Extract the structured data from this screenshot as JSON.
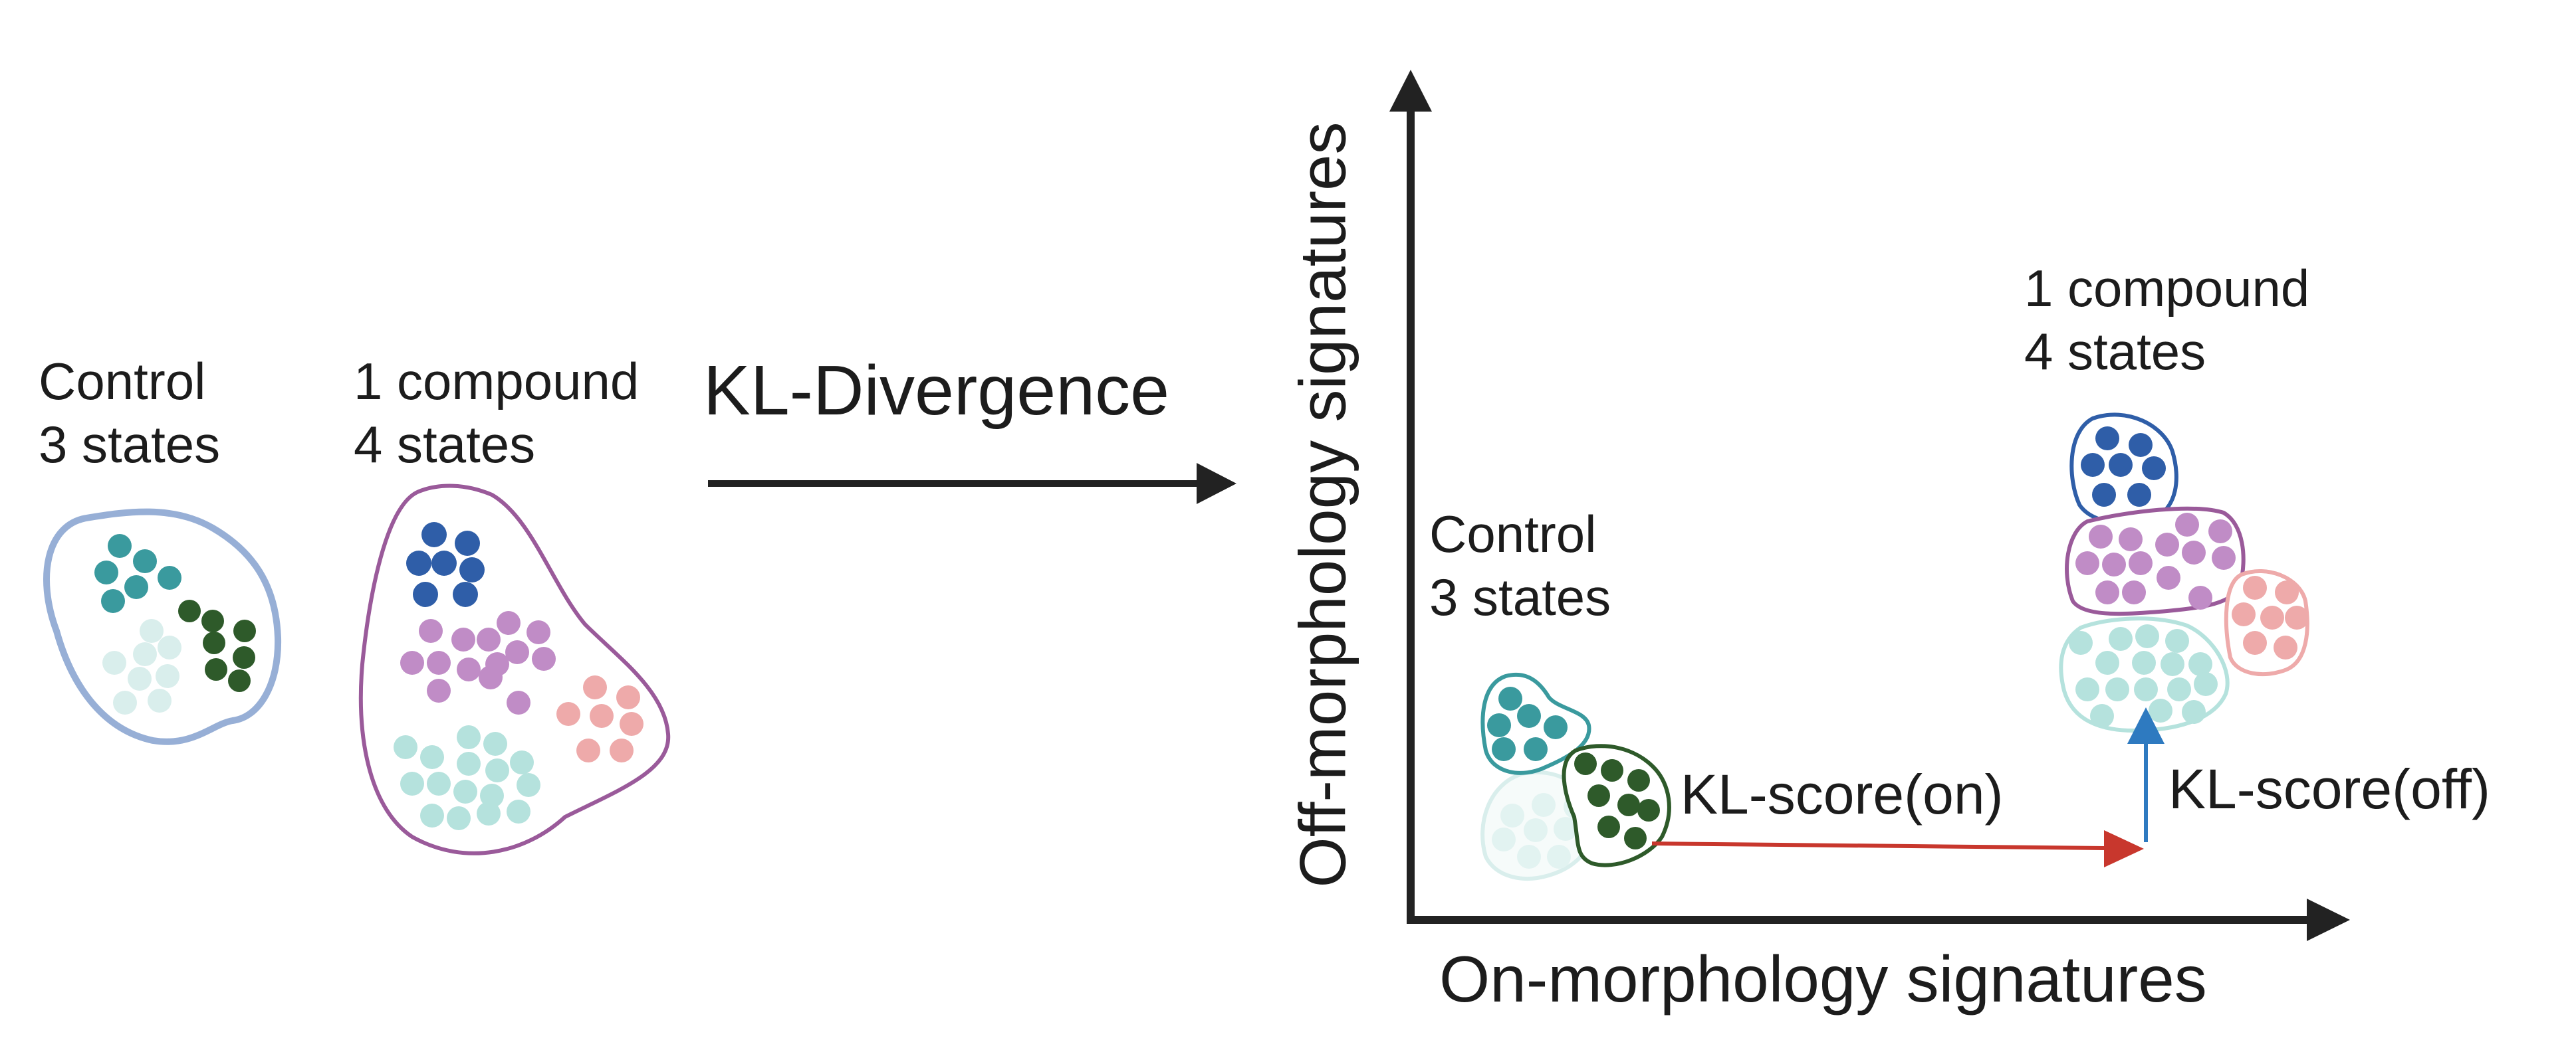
{
  "left_panel": {
    "control_label": [
      "Control",
      "3 states"
    ],
    "compound_label": [
      "1 compound",
      "4 states"
    ],
    "transform_label": "KL-Divergence"
  },
  "plot": {
    "x_axis_label": "On-morphology signatures",
    "y_axis_label": "Off-morphology signatures",
    "control_label": [
      "Control",
      "3 states"
    ],
    "compound_label": [
      "1 compound",
      "4 states"
    ],
    "score_on_label": "KL-score(on)",
    "score_off_label": "KL-score(off)"
  },
  "colors": {
    "teal": "#3a9a9e",
    "dark_green": "#2e5a2a",
    "pale_teal": "#d9eeec",
    "light_teal": "#b5e2dd",
    "blue": "#2f5ea8",
    "purple": "#c08cc6",
    "pink": "#eeaaaa",
    "control_outline": "#97afd6",
    "compound_outline": "#9a5a9a",
    "arrow_red": "#c8372d",
    "arrow_blue": "#2e7ac0",
    "axis": "#222222"
  }
}
